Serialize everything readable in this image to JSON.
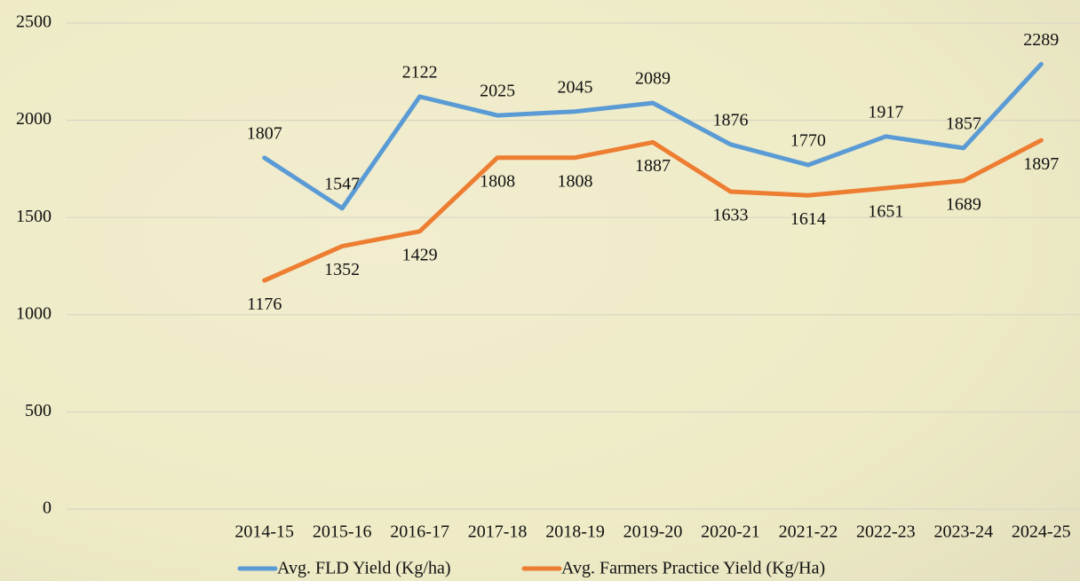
{
  "chart_data": {
    "type": "line",
    "categories": [
      "2014-15",
      "2015-16",
      "2016-17",
      "2017-18",
      "2018-19",
      "2019-20",
      "2020-21",
      "2021-22",
      "2022-23",
      "2023-24",
      "2024-25"
    ],
    "series": [
      {
        "name": "Avg. FLD Yield (Kg/ha)",
        "color": "#5b9bd5",
        "values": [
          1807,
          1547,
          2122,
          2025,
          2045,
          2089,
          1876,
          1770,
          1917,
          1857,
          2289
        ]
      },
      {
        "name": "Avg. Farmers Practice Yield (Kg/Ha)",
        "color": "#ed7d31",
        "values": [
          1176,
          1352,
          1429,
          1808,
          1808,
          1887,
          1633,
          1614,
          1651,
          1689,
          1897
        ]
      }
    ],
    "ylim": [
      0,
      2500
    ],
    "yticks": [
      0,
      500,
      1000,
      1500,
      2000,
      2500
    ],
    "grid": true,
    "legend": "bottom"
  }
}
